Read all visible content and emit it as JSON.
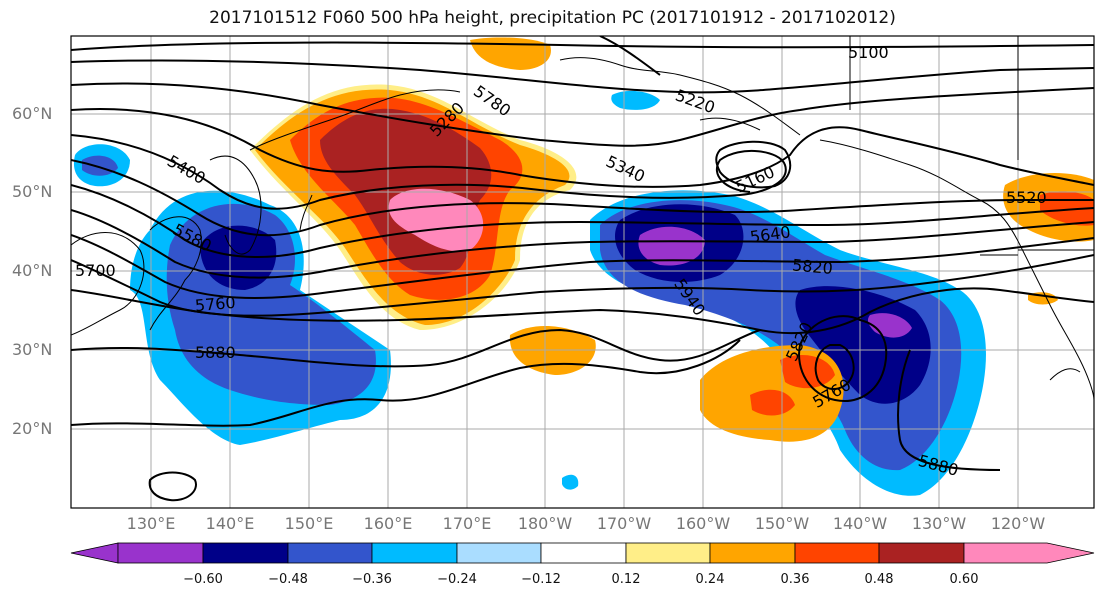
{
  "title": "2017101512 F060 500 hPa height, precipitation PC (2017101912 - 2017102012)",
  "lat_labels": [
    "60°N",
    "50°N",
    "40°N",
    "30°N",
    "20°N"
  ],
  "lon_labels": [
    "130°E",
    "140°E",
    "150°E",
    "160°E",
    "170°E",
    "180°W",
    "170°W",
    "160°W",
    "150°W",
    "140°W",
    "130°W",
    "120°W"
  ],
  "colorbar": {
    "ticks": [
      "−0.60",
      "−0.48",
      "−0.36",
      "−0.24",
      "−0.12",
      "0.12",
      "0.24",
      "0.36",
      "0.48",
      "0.60"
    ],
    "colors": [
      "#9933cc",
      "#000088",
      "#3355cc",
      "#00bbff",
      "#aaddff",
      "#ffffff",
      "#ffee88",
      "#ffa500",
      "#ff4400",
      "#aa2222",
      "#ff88bb"
    ]
  },
  "contour_labels": [
    "5100",
    "5160",
    "5220",
    "5280",
    "5340",
    "5400",
    "5520",
    "5580",
    "5640",
    "5700",
    "5760",
    "5780",
    "5820",
    "5880",
    "5940",
    "5760",
    "5880",
    "5820",
    "5760"
  ],
  "fill_colors": {
    "purple": "#9933cc",
    "navy": "#000088",
    "blue": "#3355cc",
    "cyan": "#00bbff",
    "yellow": "#ffee88",
    "orange": "#ffa500",
    "red": "#ff4400",
    "darkred": "#aa2222",
    "pink": "#ff88bb"
  }
}
